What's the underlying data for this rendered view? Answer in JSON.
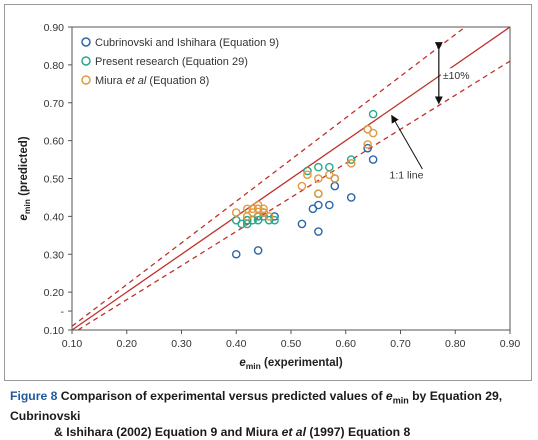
{
  "colors": {
    "series_blue": "#2a66a8",
    "series_teal": "#27a889",
    "series_orange": "#e39a3c",
    "fit_line": "#c0312b",
    "caption_blue": "#1f5a9e"
  },
  "chart_data": {
    "type": "scatter",
    "xlabel_main": "e",
    "xlabel_sub": "min",
    "xlabel_rest": " (experimental)",
    "ylabel_main": "e",
    "ylabel_sub": "min",
    "ylabel_rest": " (predicted)",
    "xlim": [
      0.1,
      0.9
    ],
    "ylim": [
      0.1,
      0.9
    ],
    "xticks": [
      "0.10",
      "0.20",
      "0.30",
      "0.40",
      "0.50",
      "0.60",
      "0.70",
      "0.80",
      "0.90"
    ],
    "yticks": [
      {
        "v": 0.1,
        "label": "0.10"
      },
      {
        "v": 0.15,
        "label": "-"
      },
      {
        "v": 0.2,
        "label": "0.20"
      },
      {
        "v": 0.3,
        "label": "0.30"
      },
      {
        "v": 0.4,
        "label": "0.40"
      },
      {
        "v": 0.5,
        "label": "0.50"
      },
      {
        "v": 0.6,
        "label": "0.60"
      },
      {
        "v": 0.7,
        "label": "0.70"
      },
      {
        "v": 0.8,
        "label": "0.80"
      },
      {
        "v": 0.9,
        "label": "0.90"
      }
    ],
    "grid": false,
    "legend_position": "top-left",
    "series": [
      {
        "name": "Cubrinovski and Ishihara (Equation 9)",
        "name_plain": "Cubrinovski and Ishihara (Equation 9)",
        "color_key": "series_blue",
        "points": [
          [
            0.4,
            0.3
          ],
          [
            0.44,
            0.31
          ],
          [
            0.52,
            0.38
          ],
          [
            0.54,
            0.42
          ],
          [
            0.55,
            0.36
          ],
          [
            0.55,
            0.43
          ],
          [
            0.57,
            0.43
          ],
          [
            0.58,
            0.48
          ],
          [
            0.61,
            0.45
          ],
          [
            0.64,
            0.58
          ],
          [
            0.65,
            0.55
          ],
          [
            0.42,
            0.39
          ],
          [
            0.44,
            0.4
          ],
          [
            0.45,
            0.41
          ],
          [
            0.47,
            0.4
          ]
        ]
      },
      {
        "name": "Present research (Equation 29)",
        "name_plain": "Present research (Equation 29)",
        "color_key": "series_teal",
        "points": [
          [
            0.4,
            0.39
          ],
          [
            0.41,
            0.38
          ],
          [
            0.42,
            0.38
          ],
          [
            0.42,
            0.39
          ],
          [
            0.43,
            0.39
          ],
          [
            0.44,
            0.39
          ],
          [
            0.44,
            0.4
          ],
          [
            0.45,
            0.4
          ],
          [
            0.46,
            0.39
          ],
          [
            0.47,
            0.39
          ],
          [
            0.53,
            0.52
          ],
          [
            0.55,
            0.53
          ],
          [
            0.55,
            0.46
          ],
          [
            0.57,
            0.53
          ],
          [
            0.58,
            0.5
          ],
          [
            0.61,
            0.55
          ],
          [
            0.64,
            0.63
          ],
          [
            0.65,
            0.67
          ],
          [
            0.44,
            0.42
          ]
        ]
      },
      {
        "name_prefix": "Miura ",
        "name_italic": "et al",
        "name_suffix": " (Equation 8)",
        "color_key": "series_orange",
        "points": [
          [
            0.4,
            0.41
          ],
          [
            0.42,
            0.4
          ],
          [
            0.42,
            0.42
          ],
          [
            0.43,
            0.41
          ],
          [
            0.44,
            0.43
          ],
          [
            0.44,
            0.42
          ],
          [
            0.45,
            0.42
          ],
          [
            0.45,
            0.41
          ],
          [
            0.46,
            0.4
          ],
          [
            0.52,
            0.48
          ],
          [
            0.53,
            0.51
          ],
          [
            0.55,
            0.46
          ],
          [
            0.55,
            0.5
          ],
          [
            0.57,
            0.51
          ],
          [
            0.58,
            0.5
          ],
          [
            0.61,
            0.54
          ],
          [
            0.64,
            0.59
          ],
          [
            0.64,
            0.63
          ],
          [
            0.65,
            0.62
          ],
          [
            0.43,
            0.42
          ]
        ]
      }
    ],
    "reference_lines": {
      "one_to_one_label": "1:1 line",
      "band_label": "±10%",
      "band_fraction": 0.1
    }
  },
  "caption": {
    "figure_number": "Figure 8",
    "text_1": " Comparison of experimental versus predicted values of ",
    "emin_main": "e",
    "emin_sub": "min",
    "text_2": " by Equation 29, Cubrinovski",
    "text_3": "& Ishihara (2002) Equation 9 and Miura ",
    "text_3_italic": "et al",
    "text_4": " (1997) Equation 8"
  }
}
